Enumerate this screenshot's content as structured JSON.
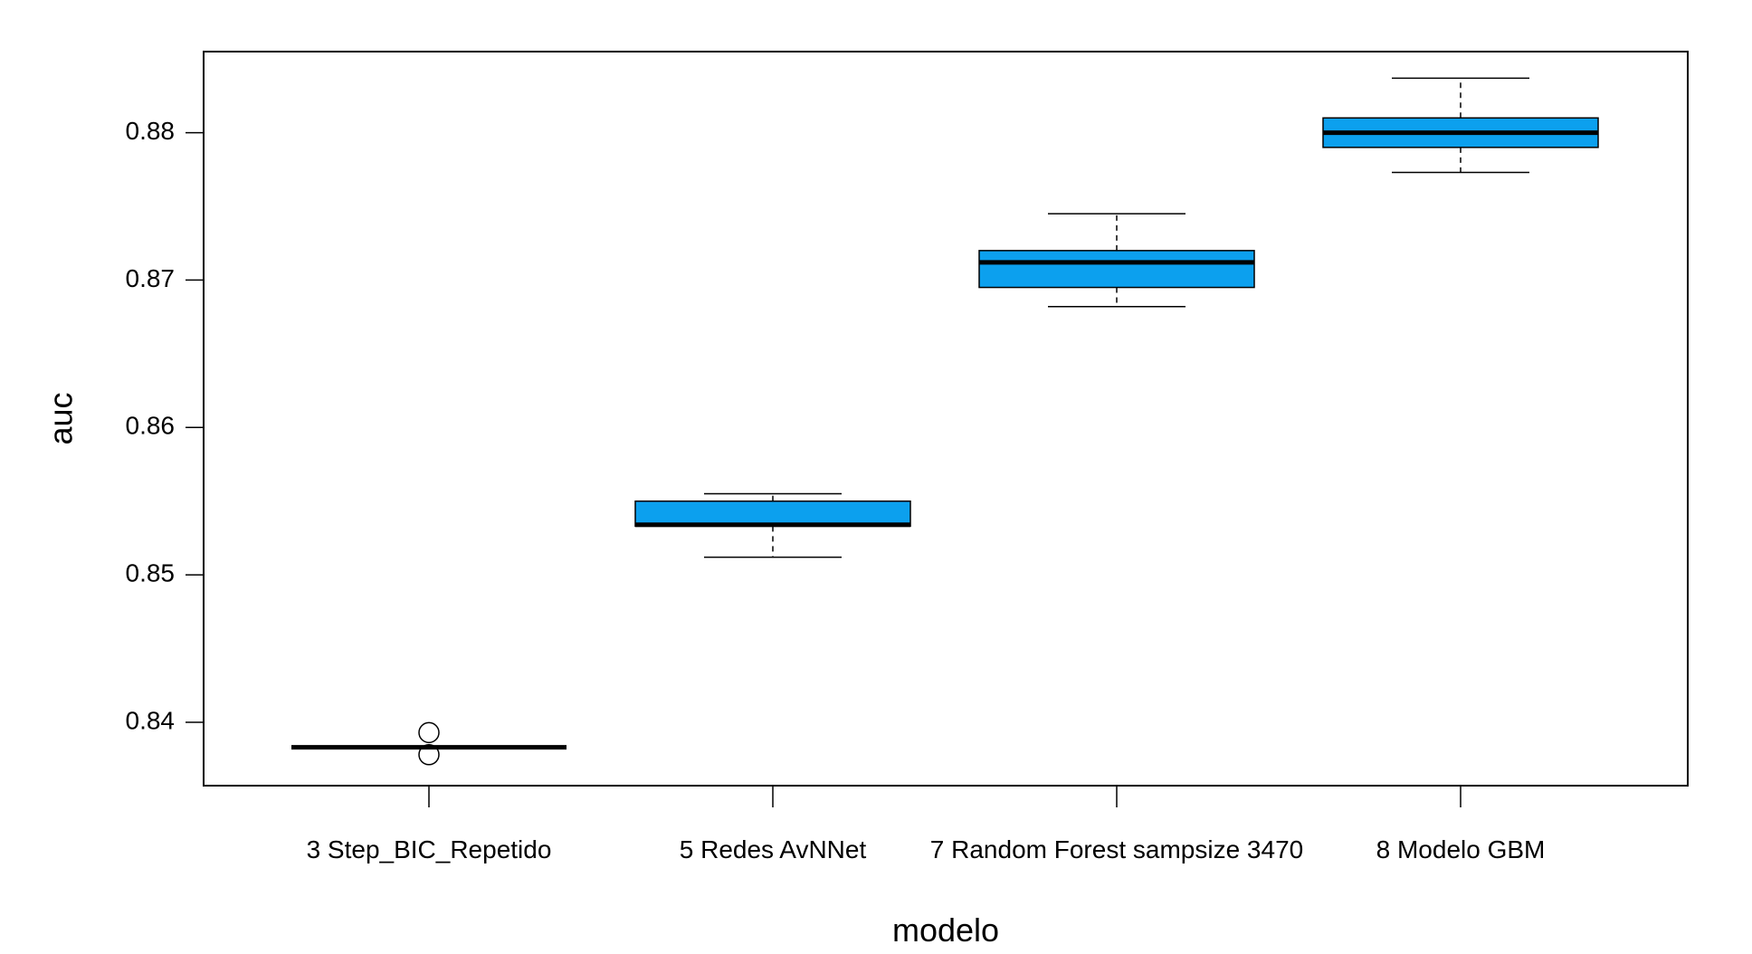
{
  "chart_data": {
    "type": "boxplot",
    "xlabel": "modelo",
    "ylabel": "auc",
    "ylim": [
      0.8357,
      0.8855
    ],
    "yticks": [
      0.84,
      0.85,
      0.86,
      0.87,
      0.88
    ],
    "ytick_labels": [
      "0.84",
      "0.85",
      "0.86",
      "0.87",
      "0.88"
    ],
    "grid": false,
    "box_color": "#0CA0EE",
    "categories": [
      "3 Step_BIC_Repetido",
      "5 Redes AvNNet",
      "7 Random Forest sampsize 3470",
      "8 Modelo GBM"
    ],
    "boxes": [
      {
        "name": "3 Step_BIC_Repetido",
        "whisker_low": 0.8383,
        "q1": 0.8383,
        "median": 0.8383,
        "q3": 0.8383,
        "whisker_high": 0.8383,
        "outliers": [
          0.8378,
          0.8393
        ]
      },
      {
        "name": "5 Redes AvNNet",
        "whisker_low": 0.8512,
        "q1": 0.8533,
        "median": 0.8534,
        "q3": 0.855,
        "whisker_high": 0.8555,
        "outliers": []
      },
      {
        "name": "7 Random Forest sampsize 3470",
        "whisker_low": 0.8682,
        "q1": 0.8695,
        "median": 0.8712,
        "q3": 0.872,
        "whisker_high": 0.8745,
        "outliers": []
      },
      {
        "name": "8 Modelo GBM",
        "whisker_low": 0.8773,
        "q1": 0.879,
        "median": 0.88,
        "q3": 0.881,
        "whisker_high": 0.8837,
        "outliers": []
      }
    ]
  }
}
